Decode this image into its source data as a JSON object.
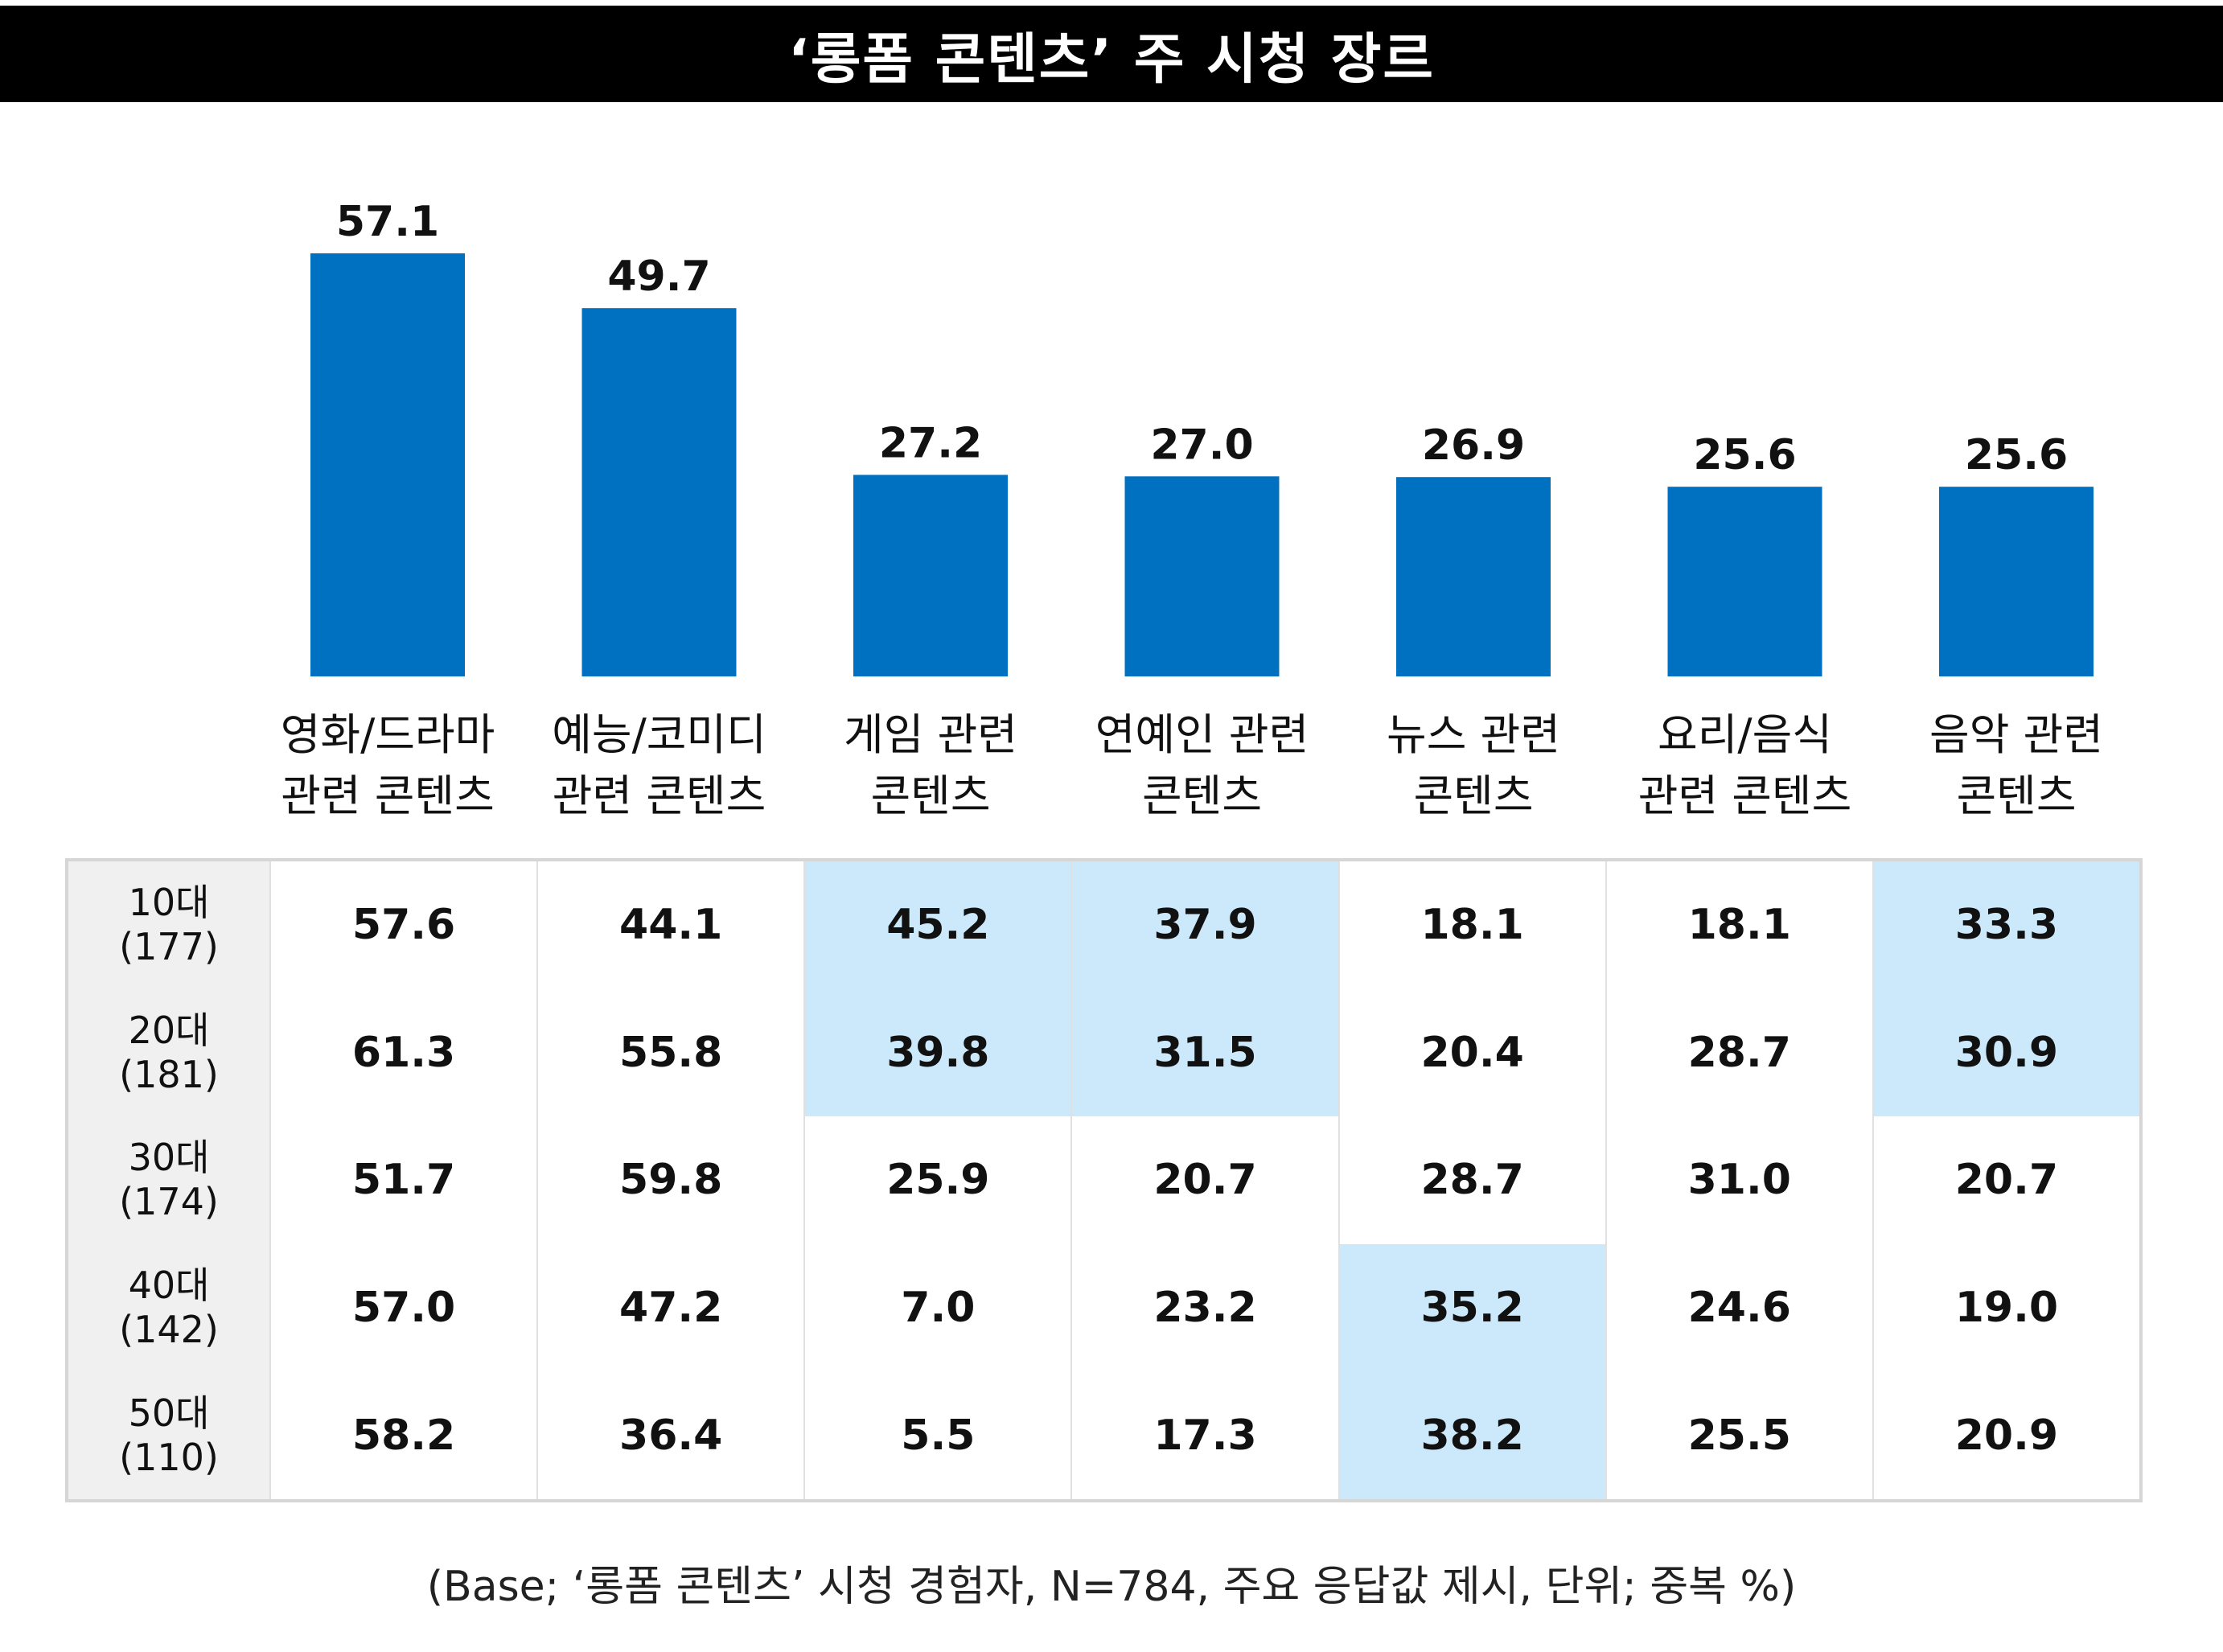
{
  "title": "‘롱폼 콘텐츠’ 주 시청 장르",
  "footnote": "(Base; ‘롱폼 콘텐츠’ 시청 경험자, N=784, 주요 응답값 제시, 단위; 중복 %)",
  "colors": {
    "bar": "#0070c0",
    "highlight": "#cce9fb",
    "title_bg": "#000000"
  },
  "chart_data": {
    "type": "bar",
    "categories": [
      [
        "영화/드라마",
        "관련 콘텐츠"
      ],
      [
        "예능/코미디",
        "관련 콘텐츠"
      ],
      [
        "게임 관련",
        "콘텐츠"
      ],
      [
        "연예인 관련",
        "콘텐츠"
      ],
      [
        "뉴스 관련",
        "콘텐츠"
      ],
      [
        "요리/음식",
        "관련 콘텐츠"
      ],
      [
        "음악 관련",
        "콘텐츠"
      ]
    ],
    "values": [
      57.1,
      49.7,
      27.2,
      27.0,
      26.9,
      25.6,
      25.6
    ],
    "value_labels": [
      "57.1",
      "49.7",
      "27.2",
      "27.0",
      "26.9",
      "25.6",
      "25.6"
    ],
    "ylim": [
      0,
      60
    ],
    "grid": false
  },
  "table": {
    "rows": [
      {
        "age": "10대",
        "n": "(177)",
        "values": [
          "57.6",
          "44.1",
          "45.2",
          "37.9",
          "18.1",
          "18.1",
          "33.3"
        ],
        "highlight": [
          false,
          false,
          true,
          true,
          false,
          false,
          true
        ]
      },
      {
        "age": "20대",
        "n": "(181)",
        "values": [
          "61.3",
          "55.8",
          "39.8",
          "31.5",
          "20.4",
          "28.7",
          "30.9"
        ],
        "highlight": [
          false,
          false,
          true,
          true,
          false,
          false,
          true
        ]
      },
      {
        "age": "30대",
        "n": "(174)",
        "values": [
          "51.7",
          "59.8",
          "25.9",
          "20.7",
          "28.7",
          "31.0",
          "20.7"
        ],
        "highlight": [
          false,
          false,
          false,
          false,
          false,
          false,
          false
        ]
      },
      {
        "age": "40대",
        "n": "(142)",
        "values": [
          "57.0",
          "47.2",
          "7.0",
          "23.2",
          "35.2",
          "24.6",
          "19.0"
        ],
        "highlight": [
          false,
          false,
          false,
          false,
          true,
          false,
          false
        ]
      },
      {
        "age": "50대",
        "n": "(110)",
        "values": [
          "58.2",
          "36.4",
          "5.5",
          "17.3",
          "38.2",
          "25.5",
          "20.9"
        ],
        "highlight": [
          false,
          false,
          false,
          false,
          true,
          false,
          false
        ]
      }
    ]
  }
}
